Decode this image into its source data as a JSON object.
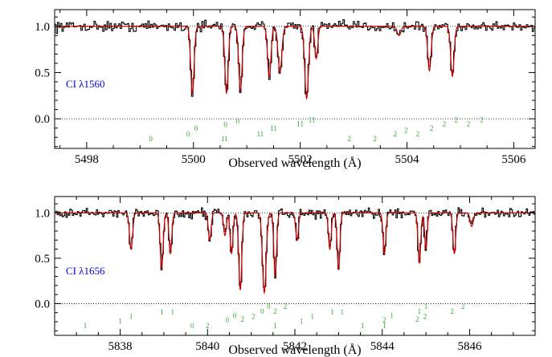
{
  "chart_data": [
    {
      "type": "line",
      "label": "CI λ1560",
      "xlabel": "Observed wavelength (Å)",
      "ylabel": "",
      "xlim": [
        5497.4,
        5506.4
      ],
      "ylim": [
        -0.32,
        1.18
      ],
      "xticks": [
        5498,
        5500,
        5502,
        5504,
        5506
      ],
      "yticks": [
        0.0,
        0.5,
        1.0
      ],
      "ytick_labels": [
        "0.0",
        "0.5",
        "1.0"
      ],
      "reference_lines": [
        1.0,
        0.0
      ],
      "colors": {
        "data": "#000000",
        "model": "#cc0000",
        "label": "#0000dd",
        "marks": "#33aa33"
      },
      "continuum": 1.0,
      "lines": [
        {
          "center": 5499.98,
          "depth": 0.73,
          "width": 0.045
        },
        {
          "center": 5500.62,
          "depth": 0.72,
          "width": 0.045
        },
        {
          "center": 5500.88,
          "depth": 0.7,
          "width": 0.045
        },
        {
          "center": 5501.42,
          "depth": 0.55,
          "width": 0.045
        },
        {
          "center": 5501.62,
          "depth": 0.5,
          "width": 0.05
        },
        {
          "center": 5502.12,
          "depth": 0.78,
          "width": 0.05
        },
        {
          "center": 5502.3,
          "depth": 0.35,
          "width": 0.04
        },
        {
          "center": 5503.85,
          "depth": 0.1,
          "width": 0.05
        },
        {
          "center": 5504.42,
          "depth": 0.48,
          "width": 0.045
        },
        {
          "center": 5504.85,
          "depth": 0.54,
          "width": 0.045
        }
      ],
      "component_marks": [
        {
          "x": 5499.2,
          "y": -0.24,
          "label": "0"
        },
        {
          "x": 5499.9,
          "y": -0.19,
          "label": "0"
        },
        {
          "x": 5500.05,
          "y": -0.13,
          "label": "0"
        },
        {
          "x": 5500.6,
          "y": -0.09,
          "label": "0"
        },
        {
          "x": 5500.83,
          "y": -0.05,
          "label": "0"
        },
        {
          "x": 5500.58,
          "y": -0.24,
          "label": "11"
        },
        {
          "x": 5501.25,
          "y": -0.19,
          "label": "11"
        },
        {
          "x": 5501.5,
          "y": -0.13,
          "label": "11"
        },
        {
          "x": 5502.0,
          "y": -0.08,
          "label": "11"
        },
        {
          "x": 5502.22,
          "y": -0.04,
          "label": "11"
        },
        {
          "x": 5502.92,
          "y": -0.24,
          "label": "2"
        },
        {
          "x": 5503.4,
          "y": -0.24,
          "label": "2"
        },
        {
          "x": 5503.78,
          "y": -0.19,
          "label": "2"
        },
        {
          "x": 5503.98,
          "y": -0.15,
          "label": "2"
        },
        {
          "x": 5504.2,
          "y": -0.19,
          "label": "2"
        },
        {
          "x": 5504.46,
          "y": -0.13,
          "label": "2"
        },
        {
          "x": 5504.7,
          "y": -0.08,
          "label": "2"
        },
        {
          "x": 5504.92,
          "y": -0.04,
          "label": "2"
        },
        {
          "x": 5505.15,
          "y": -0.08,
          "label": "2"
        },
        {
          "x": 5505.4,
          "y": -0.04,
          "label": "2"
        }
      ]
    },
    {
      "type": "line",
      "label": "CI λ1656",
      "xlabel": "Observed wavelength (Å)",
      "ylabel": "",
      "xlim": [
        5836.5,
        5847.5
      ],
      "ylim": [
        -0.35,
        1.18
      ],
      "xticks": [
        5838,
        5840,
        5842,
        5844,
        5846
      ],
      "yticks": [
        0.0,
        0.5,
        1.0
      ],
      "ytick_labels": [
        "0.0",
        "0.5",
        "1.0"
      ],
      "reference_lines": [
        1.0,
        0.0
      ],
      "colors": {
        "data": "#000000",
        "model": "#cc0000",
        "label": "#0000dd",
        "marks": "#33aa33"
      },
      "continuum": 1.0,
      "lines": [
        {
          "center": 5838.25,
          "depth": 0.4,
          "width": 0.05
        },
        {
          "center": 5838.95,
          "depth": 0.6,
          "width": 0.05
        },
        {
          "center": 5839.15,
          "depth": 0.45,
          "width": 0.045
        },
        {
          "center": 5840.05,
          "depth": 0.3,
          "width": 0.045
        },
        {
          "center": 5840.4,
          "depth": 0.25,
          "width": 0.045
        },
        {
          "center": 5840.75,
          "depth": 0.85,
          "width": 0.05
        },
        {
          "center": 5840.55,
          "depth": 0.45,
          "width": 0.045
        },
        {
          "center": 5841.3,
          "depth": 0.88,
          "width": 0.06
        },
        {
          "center": 5841.55,
          "depth": 0.7,
          "width": 0.045
        },
        {
          "center": 5842.05,
          "depth": 0.3,
          "width": 0.045
        },
        {
          "center": 5842.8,
          "depth": 0.4,
          "width": 0.045
        },
        {
          "center": 5843.0,
          "depth": 0.62,
          "width": 0.045
        },
        {
          "center": 5844.05,
          "depth": 0.45,
          "width": 0.045
        },
        {
          "center": 5844.85,
          "depth": 0.55,
          "width": 0.045
        },
        {
          "center": 5845.0,
          "depth": 0.4,
          "width": 0.04
        },
        {
          "center": 5845.65,
          "depth": 0.45,
          "width": 0.045
        },
        {
          "center": 5846.05,
          "depth": 0.15,
          "width": 0.05
        }
      ],
      "component_marks": [
        {
          "x": 5837.2,
          "y": -0.27,
          "label": "1"
        },
        {
          "x": 5838.0,
          "y": -0.22,
          "label": "1"
        },
        {
          "x": 5838.25,
          "y": -0.17,
          "label": "1"
        },
        {
          "x": 5838.95,
          "y": -0.12,
          "label": "1"
        },
        {
          "x": 5839.2,
          "y": -0.12,
          "label": "1"
        },
        {
          "x": 5839.65,
          "y": -0.27,
          "label": "0"
        },
        {
          "x": 5840.0,
          "y": -0.27,
          "label": "2"
        },
        {
          "x": 5840.45,
          "y": -0.21,
          "label": "0"
        },
        {
          "x": 5840.62,
          "y": -0.16,
          "label": "0"
        },
        {
          "x": 5840.8,
          "y": -0.2,
          "label": "2"
        },
        {
          "x": 5841.05,
          "y": -0.17,
          "label": "2"
        },
        {
          "x": 5841.25,
          "y": -0.11,
          "label": "0"
        },
        {
          "x": 5841.4,
          "y": -0.06,
          "label": "0"
        },
        {
          "x": 5841.55,
          "y": -0.11,
          "label": "2"
        },
        {
          "x": 5841.78,
          "y": -0.06,
          "label": "2"
        },
        {
          "x": 5841.55,
          "y": -0.27,
          "label": "1"
        },
        {
          "x": 5842.15,
          "y": -0.22,
          "label": "1"
        },
        {
          "x": 5842.4,
          "y": -0.17,
          "label": "1"
        },
        {
          "x": 5842.85,
          "y": -0.12,
          "label": "1"
        },
        {
          "x": 5843.08,
          "y": -0.12,
          "label": "1"
        },
        {
          "x": 5843.55,
          "y": -0.27,
          "label": "1"
        },
        {
          "x": 5844.05,
          "y": -0.27,
          "label": "1"
        },
        {
          "x": 5844.05,
          "y": -0.21,
          "label": "2"
        },
        {
          "x": 5844.22,
          "y": -0.16,
          "label": "1"
        },
        {
          "x": 5844.8,
          "y": -0.2,
          "label": "2"
        },
        {
          "x": 5844.98,
          "y": -0.17,
          "label": "2"
        },
        {
          "x": 5844.85,
          "y": -0.11,
          "label": "1"
        },
        {
          "x": 5845.0,
          "y": -0.06,
          "label": "1"
        },
        {
          "x": 5845.6,
          "y": -0.11,
          "label": "2"
        },
        {
          "x": 5845.85,
          "y": -0.06,
          "label": "2"
        }
      ]
    }
  ]
}
